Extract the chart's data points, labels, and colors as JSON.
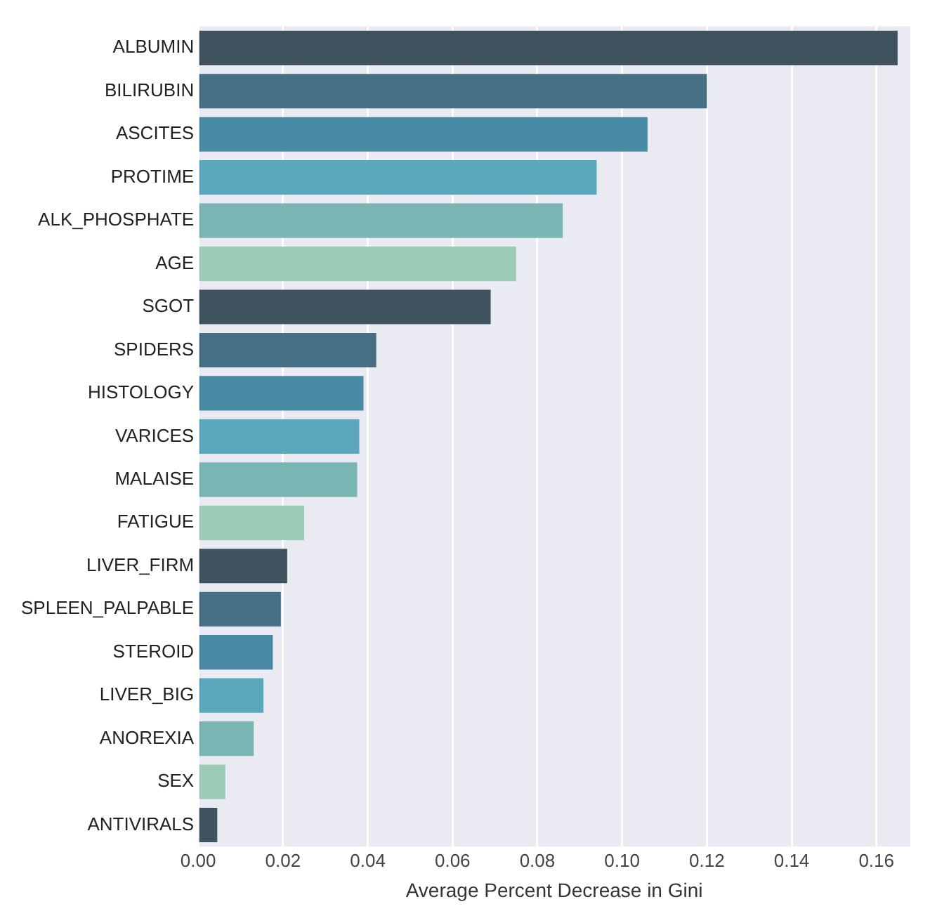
{
  "chart_data": {
    "type": "bar",
    "orientation": "horizontal",
    "xlabel": "Average Percent Decrease in Gini",
    "categories": [
      "ALBUMIN",
      "BILIRUBIN",
      "ASCITES",
      "PROTIME",
      "ALK_PHOSPHATE",
      "AGE",
      "SGOT",
      "SPIDERS",
      "HISTOLOGY",
      "VARICES",
      "MALAISE",
      "FATIGUE",
      "LIVER_FIRM",
      "SPLEEN_PALPABLE",
      "STEROID",
      "LIVER_BIG",
      "ANOREXIA",
      "SEX",
      "ANTIVIRALS"
    ],
    "values": [
      0.165,
      0.12,
      0.106,
      0.094,
      0.086,
      0.075,
      0.069,
      0.042,
      0.039,
      0.038,
      0.0375,
      0.025,
      0.021,
      0.0195,
      0.0176,
      0.0154,
      0.0131,
      0.0064,
      0.0045
    ],
    "colors": [
      "#3f535e",
      "#466f84",
      "#4b8aa5",
      "#5ba7bb",
      "#79b5b3",
      "#9ccbb8",
      "#3f535e",
      "#466f84",
      "#4b8aa5",
      "#5ba7bb",
      "#79b5b3",
      "#9ccbb8",
      "#3f535e",
      "#466f84",
      "#4b8aa5",
      "#5ba7bb",
      "#79b5b3",
      "#9ccbb8",
      "#3f535e"
    ],
    "xlim": [
      0,
      0.168
    ],
    "xticks": [
      {
        "value": 0,
        "label": "0.00"
      },
      {
        "value": 0.02,
        "label": "0.02"
      },
      {
        "value": 0.04,
        "label": "0.04"
      },
      {
        "value": 0.06,
        "label": "0.06"
      },
      {
        "value": 0.08,
        "label": "0.08"
      },
      {
        "value": 0.1,
        "label": "0.10"
      },
      {
        "value": 0.12,
        "label": "0.12"
      },
      {
        "value": 0.14,
        "label": "0.14"
      },
      {
        "value": 0.16,
        "label": "0.16"
      }
    ],
    "grid": "x",
    "legend": false
  }
}
